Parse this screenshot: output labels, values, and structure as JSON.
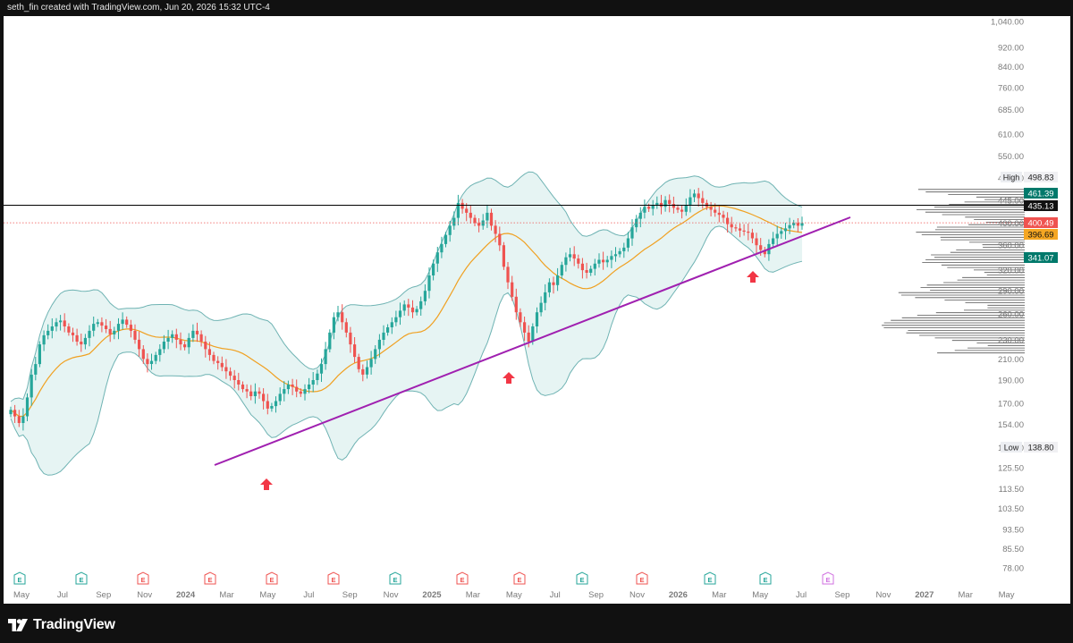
{
  "header": {
    "caption": "seth_fin created with TradingView.com, Jun 20, 2026 15:32 UTC-4"
  },
  "footer": {
    "brand": "TradingView"
  },
  "colors": {
    "up": "#26a69a",
    "down": "#ef5350",
    "ma": "#f0a020",
    "band": "#6fb3b3",
    "trend": "#a020b0",
    "marker": "#f23645"
  },
  "chart_data": {
    "type": "candlestick",
    "y_scale": "log",
    "y_ticks": [
      "1,040.00",
      "920.00",
      "840.00",
      "760.00",
      "685.00",
      "610.00",
      "550.00",
      "495.00",
      "445.00",
      "400.00",
      "360.00",
      "320.00",
      "290.00",
      "260.00",
      "230.00",
      "210.00",
      "190.00",
      "170.00",
      "154.00",
      "138.00",
      "125.50",
      "113.50",
      "103.50",
      "93.50",
      "85.50",
      "78.00"
    ],
    "x_ticks": [
      "May",
      "Jul",
      "Sep",
      "Nov",
      "2024",
      "Mar",
      "May",
      "Jul",
      "Sep",
      "Nov",
      "2025",
      "Mar",
      "May",
      "Jul",
      "Sep",
      "Nov",
      "2026",
      "Mar",
      "May",
      "Jul",
      "Sep",
      "Nov",
      "2027",
      "Mar",
      "May"
    ],
    "price_labels": [
      {
        "text": "High",
        "value": "498.83",
        "price": 498.83,
        "style": "plain"
      },
      {
        "text": "",
        "value": "461.39",
        "price": 461.39,
        "style": "teal"
      },
      {
        "text": "",
        "value": "435.13",
        "price": 435.13,
        "style": "black"
      },
      {
        "text": "",
        "value": "400.49",
        "price": 400.49,
        "style": "red"
      },
      {
        "text": "",
        "value": "396.69",
        "price": 396.69,
        "style": "orange"
      },
      {
        "text": "",
        "value": "341.07",
        "price": 341.07,
        "style": "teal"
      },
      {
        "text": "Low",
        "value": "138.80",
        "price": 138.8,
        "style": "plain"
      }
    ],
    "horizontal_line": 435.13,
    "current_price": 400.49,
    "trendline": [
      [
        240,
        152
      ],
      [
        1010,
        420
      ]
    ],
    "markers": [
      300,
      570,
      843
    ],
    "events": [
      {
        "x": 16,
        "label": "E",
        "type": "earnings"
      },
      {
        "x": 85,
        "label": "E",
        "type": "earnings"
      },
      {
        "x": 154,
        "label": "E",
        "type": "dividend"
      },
      {
        "x": 229,
        "label": "E",
        "type": "dividend"
      },
      {
        "x": 298,
        "label": "E",
        "type": "dividend"
      },
      {
        "x": 367,
        "label": "E",
        "type": "dividend"
      },
      {
        "x": 436,
        "label": "E",
        "type": "earnings"
      },
      {
        "x": 511,
        "label": "E",
        "type": "dividend"
      },
      {
        "x": 575,
        "label": "E",
        "type": "dividend"
      },
      {
        "x": 645,
        "label": "E",
        "type": "earnings"
      },
      {
        "x": 712,
        "label": "E",
        "type": "dividend"
      },
      {
        "x": 788,
        "label": "E",
        "type": "earnings"
      },
      {
        "x": 850,
        "label": "E",
        "type": "earnings"
      },
      {
        "x": 920,
        "label": "E",
        "type": "future"
      }
    ],
    "candles_weekly_close": [
      165,
      160,
      155,
      160,
      175,
      195,
      205,
      225,
      235,
      240,
      245,
      250,
      252,
      245,
      238,
      235,
      228,
      225,
      232,
      240,
      248,
      250,
      246,
      242,
      236,
      240,
      248,
      253,
      247,
      240,
      230,
      220,
      210,
      205,
      208,
      214,
      220,
      228,
      232,
      236,
      230,
      225,
      222,
      232,
      240,
      236,
      228,
      220,
      214,
      208,
      206,
      202,
      198,
      194,
      190,
      186,
      182,
      180,
      176,
      180,
      178,
      172,
      166,
      168,
      172,
      178,
      182,
      186,
      184,
      180,
      178,
      182,
      186,
      190,
      196,
      205,
      220,
      238,
      256,
      262,
      250,
      238,
      225,
      212,
      200,
      195,
      202,
      210,
      220,
      230,
      238,
      244,
      250,
      256,
      264,
      272,
      268,
      262,
      266,
      276,
      290,
      312,
      330,
      348,
      362,
      378,
      395,
      410,
      440,
      428,
      420,
      410,
      400,
      395,
      405,
      420,
      395,
      380,
      360,
      325,
      302,
      282,
      262,
      250,
      238,
      228,
      245,
      262,
      274,
      288,
      302,
      298,
      312,
      328,
      340,
      345,
      338,
      330,
      320,
      316,
      322,
      330,
      336,
      332,
      336,
      342,
      345,
      350,
      356,
      372,
      392,
      408,
      420,
      432,
      428,
      436,
      440,
      432,
      446,
      438,
      430,
      426,
      422,
      436,
      452,
      460,
      450,
      440,
      432,
      426,
      420,
      416,
      410,
      398,
      392,
      390,
      386,
      384,
      382,
      372,
      360,
      352,
      345,
      362,
      372,
      380,
      385,
      390,
      396,
      400,
      395,
      400
    ]
  }
}
